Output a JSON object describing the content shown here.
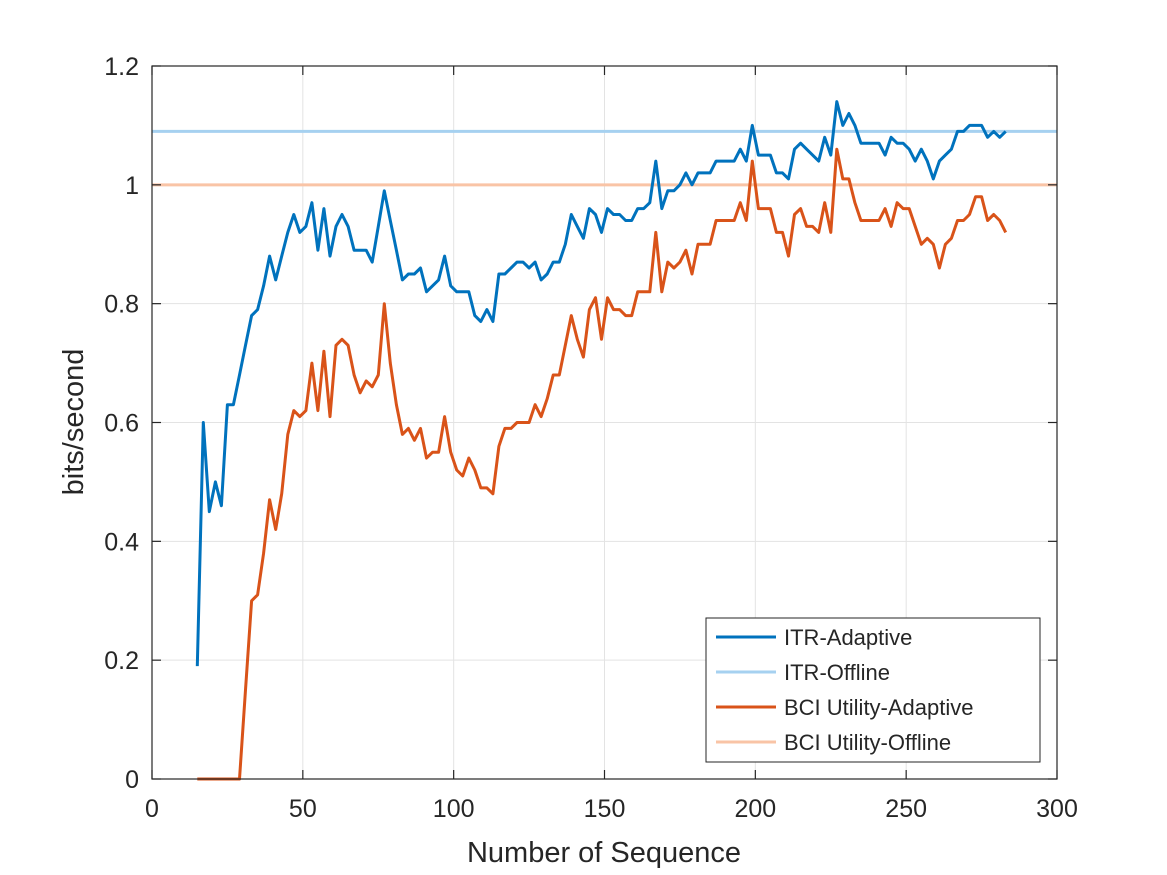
{
  "chart_data": {
    "type": "line",
    "xlabel": "Number of Sequence",
    "ylabel": "bits/second",
    "xlim": [
      0,
      300
    ],
    "ylim": [
      0,
      1.2
    ],
    "xticks": [
      0,
      50,
      100,
      150,
      200,
      250,
      300
    ],
    "yticks": [
      0,
      0.2,
      0.4,
      0.6,
      0.8,
      1,
      1.2
    ],
    "xtick_labels": [
      "0",
      "50",
      "100",
      "150",
      "200",
      "250",
      "300"
    ],
    "ytick_labels": [
      "0",
      "0.2",
      "0.4",
      "0.6",
      "0.8",
      "1",
      "1.2"
    ],
    "grid": true,
    "legend_position": "bottom-right",
    "legend": [
      "ITR-Adaptive",
      "ITR-Offline",
      "BCI Utility-Adaptive",
      "BCI Utility-Offline"
    ],
    "series": [
      {
        "name": "ITR-Adaptive",
        "color": "#0072BD",
        "x": [
          15,
          17,
          19,
          21,
          23,
          25,
          27,
          29,
          31,
          33,
          35,
          37,
          39,
          41,
          43,
          45,
          47,
          49,
          51,
          53,
          55,
          57,
          59,
          61,
          63,
          65,
          67,
          69,
          71,
          73,
          75,
          77,
          79,
          81,
          83,
          85,
          87,
          89,
          91,
          93,
          95,
          97,
          99,
          101,
          103,
          105,
          107,
          109,
          111,
          113,
          115,
          117,
          119,
          121,
          123,
          125,
          127,
          129,
          131,
          133,
          135,
          137,
          139,
          141,
          143,
          145,
          147,
          149,
          151,
          153,
          155,
          157,
          159,
          161,
          163,
          165,
          167,
          169,
          171,
          173,
          175,
          177,
          179,
          181,
          183,
          185,
          187,
          189,
          191,
          193,
          195,
          197,
          199,
          201,
          203,
          205,
          207,
          209,
          211,
          213,
          215,
          217,
          219,
          221,
          223,
          225,
          227,
          229,
          231,
          233,
          235,
          237,
          239,
          241,
          243,
          245,
          247,
          249,
          251,
          253,
          255,
          257,
          259,
          261,
          263,
          265,
          267,
          269,
          271,
          273,
          275,
          277,
          279,
          281,
          283
        ],
        "y": [
          0.19,
          0.6,
          0.45,
          0.5,
          0.46,
          0.63,
          0.63,
          0.68,
          0.73,
          0.78,
          0.79,
          0.83,
          0.88,
          0.84,
          0.88,
          0.92,
          0.95,
          0.92,
          0.93,
          0.97,
          0.89,
          0.96,
          0.88,
          0.93,
          0.95,
          0.93,
          0.89,
          0.89,
          0.89,
          0.87,
          0.93,
          0.99,
          0.94,
          0.89,
          0.84,
          0.85,
          0.85,
          0.86,
          0.82,
          0.83,
          0.84,
          0.88,
          0.83,
          0.82,
          0.82,
          0.82,
          0.78,
          0.77,
          0.79,
          0.77,
          0.85,
          0.85,
          0.86,
          0.87,
          0.87,
          0.86,
          0.87,
          0.84,
          0.85,
          0.87,
          0.87,
          0.9,
          0.95,
          0.93,
          0.91,
          0.96,
          0.95,
          0.92,
          0.96,
          0.95,
          0.95,
          0.94,
          0.94,
          0.96,
          0.96,
          0.97,
          1.04,
          0.96,
          0.99,
          0.99,
          1.0,
          1.02,
          1.0,
          1.02,
          1.02,
          1.02,
          1.04,
          1.04,
          1.04,
          1.04,
          1.06,
          1.04,
          1.1,
          1.05,
          1.05,
          1.05,
          1.02,
          1.02,
          1.01,
          1.06,
          1.07,
          1.06,
          1.05,
          1.04,
          1.08,
          1.05,
          1.14,
          1.1,
          1.12,
          1.1,
          1.07,
          1.07,
          1.07,
          1.07,
          1.05,
          1.08,
          1.07,
          1.07,
          1.06,
          1.04,
          1.06,
          1.04,
          1.01,
          1.04,
          1.05,
          1.06,
          1.09,
          1.09,
          1.1,
          1.1,
          1.1,
          1.08,
          1.09,
          1.08,
          1.09
        ]
      },
      {
        "name": "ITR-Offline",
        "color": "#A6D1F0",
        "constant": 1.09
      },
      {
        "name": "BCI Utility-Adaptive",
        "color": "#D95319",
        "x": [
          15,
          17,
          19,
          21,
          23,
          25,
          27,
          29,
          31,
          33,
          35,
          37,
          39,
          41,
          43,
          45,
          47,
          49,
          51,
          53,
          55,
          57,
          59,
          61,
          63,
          65,
          67,
          69,
          71,
          73,
          75,
          77,
          79,
          81,
          83,
          85,
          87,
          89,
          91,
          93,
          95,
          97,
          99,
          101,
          103,
          105,
          107,
          109,
          111,
          113,
          115,
          117,
          119,
          121,
          123,
          125,
          127,
          129,
          131,
          133,
          135,
          137,
          139,
          141,
          143,
          145,
          147,
          149,
          151,
          153,
          155,
          157,
          159,
          161,
          163,
          165,
          167,
          169,
          171,
          173,
          175,
          177,
          179,
          181,
          183,
          185,
          187,
          189,
          191,
          193,
          195,
          197,
          199,
          201,
          203,
          205,
          207,
          209,
          211,
          213,
          215,
          217,
          219,
          221,
          223,
          225,
          227,
          229,
          231,
          233,
          235,
          237,
          239,
          241,
          243,
          245,
          247,
          249,
          251,
          253,
          255,
          257,
          259,
          261,
          263,
          265,
          267,
          269,
          271,
          273,
          275,
          277,
          279,
          281,
          283
        ],
        "y": [
          0.0,
          0.0,
          0.0,
          0.0,
          0.0,
          0.0,
          0.0,
          0.0,
          0.15,
          0.3,
          0.31,
          0.38,
          0.47,
          0.42,
          0.48,
          0.58,
          0.62,
          0.61,
          0.62,
          0.7,
          0.62,
          0.72,
          0.61,
          0.73,
          0.74,
          0.73,
          0.68,
          0.65,
          0.67,
          0.66,
          0.68,
          0.8,
          0.7,
          0.63,
          0.58,
          0.59,
          0.57,
          0.59,
          0.54,
          0.55,
          0.55,
          0.61,
          0.55,
          0.52,
          0.51,
          0.54,
          0.52,
          0.49,
          0.49,
          0.48,
          0.56,
          0.59,
          0.59,
          0.6,
          0.6,
          0.6,
          0.63,
          0.61,
          0.64,
          0.68,
          0.68,
          0.73,
          0.78,
          0.74,
          0.71,
          0.79,
          0.81,
          0.74,
          0.81,
          0.79,
          0.79,
          0.78,
          0.78,
          0.82,
          0.82,
          0.82,
          0.92,
          0.82,
          0.87,
          0.86,
          0.87,
          0.89,
          0.85,
          0.9,
          0.9,
          0.9,
          0.94,
          0.94,
          0.94,
          0.94,
          0.97,
          0.94,
          1.04,
          0.96,
          0.96,
          0.96,
          0.92,
          0.92,
          0.88,
          0.95,
          0.96,
          0.93,
          0.93,
          0.92,
          0.97,
          0.92,
          1.06,
          1.01,
          1.01,
          0.97,
          0.94,
          0.94,
          0.94,
          0.94,
          0.96,
          0.93,
          0.97,
          0.96,
          0.96,
          0.93,
          0.9,
          0.91,
          0.9,
          0.86,
          0.9,
          0.91,
          0.94,
          0.94,
          0.95,
          0.98,
          0.98,
          0.94,
          0.95,
          0.94,
          0.92
        ]
      },
      {
        "name": "BCI Utility-Offline",
        "color": "#F9C4A6",
        "constant": 1.0
      }
    ]
  }
}
